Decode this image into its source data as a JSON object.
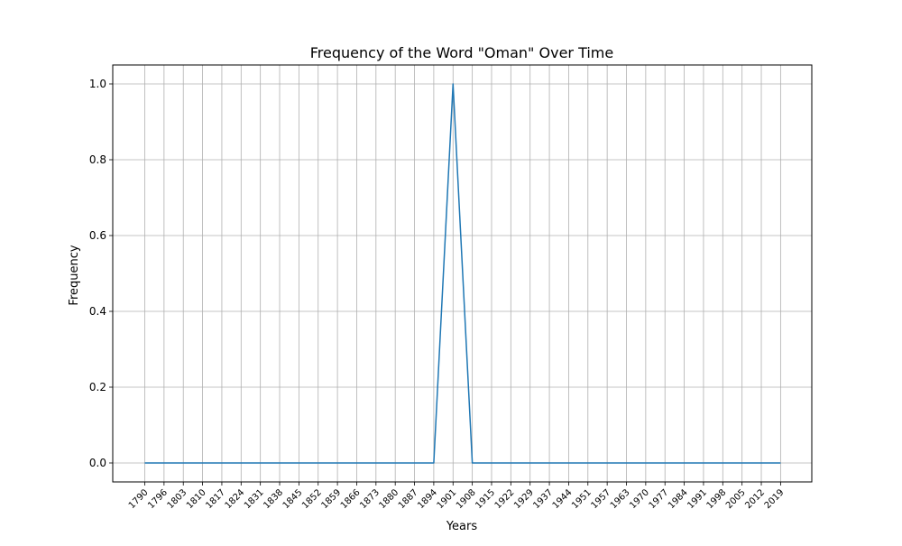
{
  "chart_data": {
    "type": "line",
    "title": "Frequency of the Word \"Oman\" Over Time",
    "xlabel": "Years",
    "ylabel": "Frequency",
    "x": [
      "1790",
      "1796",
      "1803",
      "1810",
      "1817",
      "1824",
      "1831",
      "1838",
      "1845",
      "1852",
      "1859",
      "1866",
      "1873",
      "1880",
      "1887",
      "1894",
      "1901",
      "1908",
      "1915",
      "1922",
      "1929",
      "1937",
      "1944",
      "1951",
      "1957",
      "1963",
      "1970",
      "1977",
      "1984",
      "1991",
      "1998",
      "2005",
      "2012",
      "2019"
    ],
    "series": [
      {
        "values": [
          0,
          0,
          0,
          0,
          0,
          0,
          0,
          0,
          0,
          0,
          0,
          0,
          0,
          0,
          0,
          0,
          1,
          0,
          0,
          0,
          0,
          0,
          0,
          0,
          0,
          0,
          0,
          0,
          0,
          0,
          0,
          0,
          0,
          0
        ],
        "color": "#1f77b4"
      }
    ],
    "yticks": [
      "0.0",
      "0.2",
      "0.4",
      "0.6",
      "0.8",
      "1.0"
    ],
    "ylim": [
      -0.05,
      1.05
    ],
    "grid": true,
    "legend": "none"
  }
}
